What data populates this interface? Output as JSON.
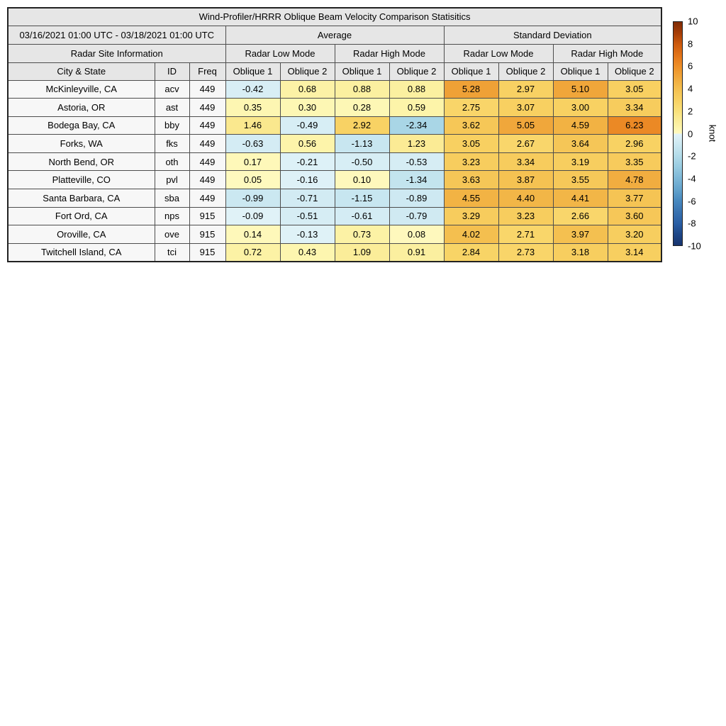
{
  "colors": {
    "header_bg": "#e6e6e6",
    "site_cell_bg": "#f7f7f7",
    "grid_line": "#4d4d4d",
    "outer_border": "#222222",
    "text": "#000000",
    "page_bg": "#ffffff"
  },
  "chart_data": {
    "type": "heatmap",
    "title": "Wind-Profiler/HRRR Oblique Beam Velocity Comparison Statisitics",
    "period": "03/16/2021 01:00 UTC - 03/18/2021 01:00 UTC",
    "group_headers": [
      "Average",
      "Standard Deviation"
    ],
    "site_info_header": "Radar Site Information",
    "mode_headers": [
      "Radar Low Mode",
      "Radar High Mode",
      "Radar Low Mode",
      "Radar High Mode"
    ],
    "site_headers": [
      "City & State",
      "ID",
      "Freq"
    ],
    "oblique_headers": [
      "Oblique 1",
      "Oblique 2",
      "Oblique 1",
      "Oblique 2",
      "Oblique 1",
      "Oblique 2",
      "Oblique 1",
      "Oblique 2"
    ],
    "rows": [
      {
        "city": "McKinleyville, CA",
        "id": "acv",
        "freq": "449",
        "values": [
          -0.42,
          0.68,
          0.88,
          0.88,
          5.28,
          2.97,
          5.1,
          3.05
        ]
      },
      {
        "city": "Astoria, OR",
        "id": "ast",
        "freq": "449",
        "values": [
          0.35,
          0.3,
          0.28,
          0.59,
          2.75,
          3.07,
          3.0,
          3.34
        ]
      },
      {
        "city": "Bodega Bay, CA",
        "id": "bby",
        "freq": "449",
        "values": [
          1.46,
          -0.49,
          2.92,
          -2.34,
          3.62,
          5.05,
          4.59,
          6.23
        ]
      },
      {
        "city": "Forks, WA",
        "id": "fks",
        "freq": "449",
        "values": [
          -0.63,
          0.56,
          -1.13,
          1.23,
          3.05,
          2.67,
          3.64,
          2.96
        ]
      },
      {
        "city": "North Bend, OR",
        "id": "oth",
        "freq": "449",
        "values": [
          0.17,
          -0.21,
          -0.5,
          -0.53,
          3.23,
          3.34,
          3.19,
          3.35
        ]
      },
      {
        "city": "Platteville, CO",
        "id": "pvl",
        "freq": "449",
        "values": [
          0.05,
          -0.16,
          0.1,
          -1.34,
          3.63,
          3.87,
          3.55,
          4.78
        ]
      },
      {
        "city": "Santa Barbara, CA",
        "id": "sba",
        "freq": "449",
        "values": [
          -0.99,
          -0.71,
          -1.15,
          -0.89,
          4.55,
          4.4,
          4.41,
          3.77
        ]
      },
      {
        "city": "Fort Ord, CA",
        "id": "nps",
        "freq": "915",
        "values": [
          -0.09,
          -0.51,
          -0.61,
          -0.79,
          3.29,
          3.23,
          2.66,
          3.6
        ]
      },
      {
        "city": "Oroville, CA",
        "id": "ove",
        "freq": "915",
        "values": [
          0.14,
          -0.13,
          0.73,
          0.08,
          4.02,
          2.71,
          3.97,
          3.2
        ]
      },
      {
        "city": "Twitchell Island, CA",
        "id": "tci",
        "freq": "915",
        "values": [
          0.72,
          0.43,
          1.09,
          0.91,
          2.84,
          2.73,
          3.18,
          3.14
        ]
      }
    ],
    "colorbar": {
      "label": "knot",
      "min": -10,
      "max": 10,
      "ticks": [
        10,
        8,
        6,
        4,
        2,
        0,
        -2,
        -4,
        -6,
        -8,
        -10
      ],
      "orientation": "vertical"
    },
    "colormap": {
      "negative": [
        {
          "v": -10,
          "c": "#17346E"
        },
        {
          "v": -9,
          "c": "#1E4788"
        },
        {
          "v": -8,
          "c": "#2A5FA5"
        },
        {
          "v": -7,
          "c": "#3972B0"
        },
        {
          "v": -6,
          "c": "#4889BF"
        },
        {
          "v": -5,
          "c": "#63A3CC"
        },
        {
          "v": -4,
          "c": "#7DB7D7"
        },
        {
          "v": -3,
          "c": "#97CBE1"
        },
        {
          "v": -2,
          "c": "#B2DBE9"
        },
        {
          "v": -1,
          "c": "#CBE8F1"
        },
        {
          "v": 0,
          "c": "#E2F3F8"
        }
      ],
      "positive": [
        {
          "v": 0,
          "c": "#FEF9C0"
        },
        {
          "v": 0.5,
          "c": "#FDF5AC"
        },
        {
          "v": 1,
          "c": "#FBEE9C"
        },
        {
          "v": 1.5,
          "c": "#FAE88D"
        },
        {
          "v": 2,
          "c": "#F9E07B"
        },
        {
          "v": 2.5,
          "c": "#F9D96F"
        },
        {
          "v": 3,
          "c": "#F8D162"
        },
        {
          "v": 3.5,
          "c": "#F6C95A"
        },
        {
          "v": 4,
          "c": "#F4BF4F"
        },
        {
          "v": 4.5,
          "c": "#F2B445"
        },
        {
          "v": 5,
          "c": "#F0A83C"
        },
        {
          "v": 5.5,
          "c": "#EF9C31"
        },
        {
          "v": 6,
          "c": "#ED8F28"
        },
        {
          "v": 6.5,
          "c": "#E98221"
        },
        {
          "v": 7,
          "c": "#E27419"
        },
        {
          "v": 8,
          "c": "#CD5A0D"
        },
        {
          "v": 9,
          "c": "#A63D06"
        },
        {
          "v": 10,
          "c": "#7F2B05"
        }
      ]
    }
  }
}
